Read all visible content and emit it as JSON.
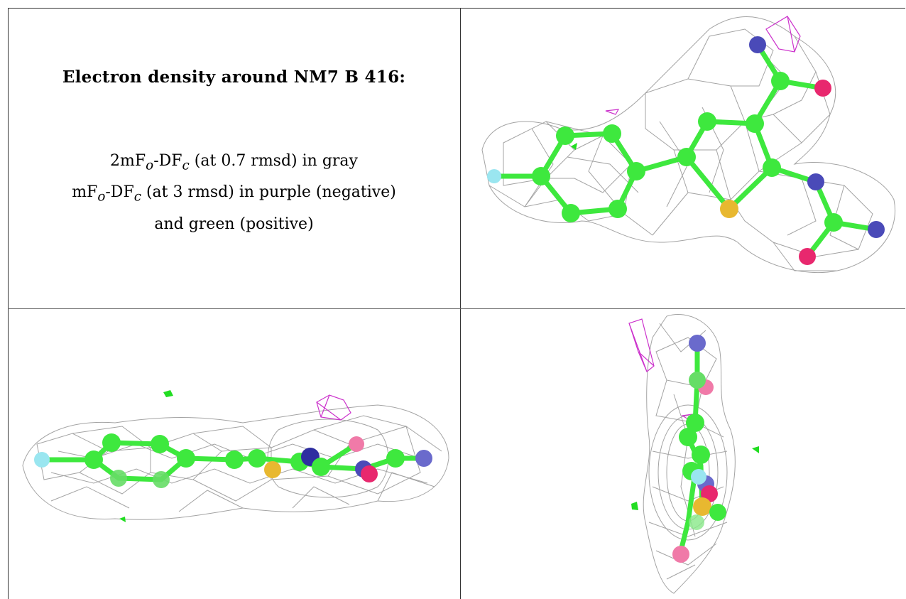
{
  "figure": {
    "title": "Electron density around NM7 B 416:",
    "legend_lines": [
      {
        "pre": "2mF",
        "sub1": "o",
        "mid": "-DF",
        "sub2": "c",
        "post": " (at 0.7 rmsd) in gray"
      },
      {
        "pre": "mF",
        "sub1": "o",
        "mid": "-DF",
        "sub2": "c",
        "post": " (at 3 rmsd) in purple (negative)"
      },
      {
        "text": "and green (positive)"
      }
    ]
  },
  "colors": {
    "carbon": "#3ee83e",
    "nitrogen": "#4a4ab8",
    "oxygen": "#e8286e",
    "sulfur": "#e8b830",
    "fluorine": "#9ae6f0",
    "density_mesh": "#9a9a9a",
    "negative_difference": "#cc33cc",
    "positive_difference": "#22dd22",
    "grid_line": "#333333"
  },
  "panels": [
    {
      "name": "view-top-face"
    },
    {
      "name": "view-edge-on"
    },
    {
      "name": "view-end-on"
    }
  ]
}
